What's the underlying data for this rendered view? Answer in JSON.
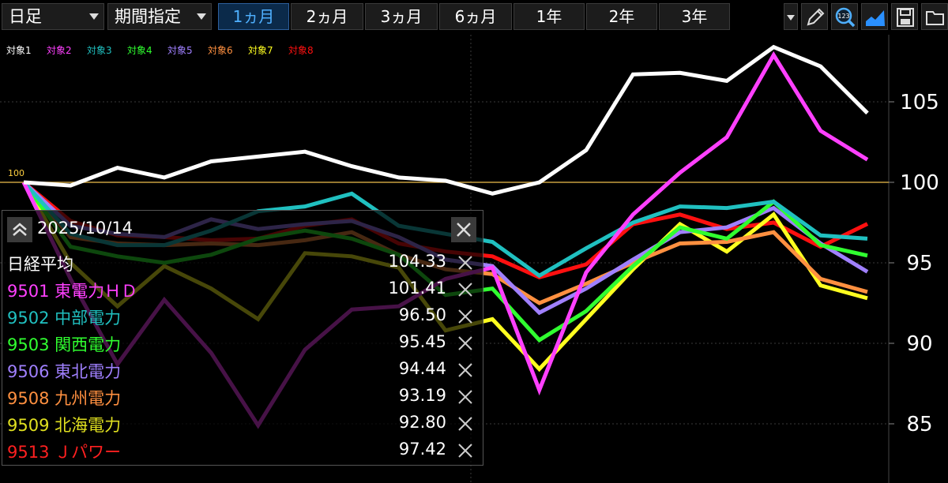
{
  "toolbar": {
    "interval": "日足",
    "range_mode": "期間指定",
    "periods": [
      "1ヵ月",
      "2ヵ月",
      "3ヵ月",
      "6ヵ月",
      "1年",
      "2年",
      "3年"
    ],
    "active_period": 0,
    "icons": [
      "pencil-icon",
      "zoom-123-icon",
      "area-chart-icon",
      "save-icon",
      "folder-icon"
    ]
  },
  "chart_data": {
    "type": "line",
    "base_label": "100",
    "ylim": [
      82,
      110
    ],
    "yticks": [
      "85",
      "90",
      "95",
      "100",
      "105"
    ],
    "legend": [
      "対象1",
      "対象2",
      "対象3",
      "対象4",
      "対象5",
      "対象6",
      "対象7",
      "対象8"
    ],
    "grid": true,
    "series": [
      {
        "name": "日経平均",
        "color": "#ffffff",
        "values": [
          100,
          99.8,
          100.9,
          100.3,
          101.3,
          101.6,
          101.9,
          101.0,
          100.3,
          100.1,
          99.3,
          100.0,
          102.0,
          106.7,
          106.8,
          106.3,
          108.4,
          107.2,
          104.3
        ]
      },
      {
        "name": "9501 東電力ＨＤ",
        "color": "#ff40ff",
        "values": [
          100,
          94.0,
          88.7,
          92.7,
          89.4,
          84.9,
          89.6,
          92.1,
          92.3,
          94.0,
          94.7,
          87.1,
          94.4,
          98.0,
          100.6,
          102.8,
          107.9,
          103.2,
          101.41
        ]
      },
      {
        "name": "9502 中部電力",
        "color": "#20c0c0",
        "values": [
          100,
          96.8,
          96.1,
          96.1,
          97.0,
          98.2,
          98.5,
          99.3,
          97.3,
          96.8,
          96.3,
          94.2,
          95.9,
          97.5,
          98.5,
          98.4,
          98.8,
          96.7,
          96.5
        ]
      },
      {
        "name": "9503 関西電力",
        "color": "#30ff30",
        "values": [
          100,
          96.0,
          95.4,
          95.0,
          95.5,
          96.5,
          97.0,
          96.5,
          95.5,
          93.0,
          93.4,
          90.2,
          92.0,
          94.8,
          97.2,
          96.5,
          98.8,
          96.1,
          95.45
        ]
      },
      {
        "name": "9506 東北電力",
        "color": "#a080ff",
        "values": [
          100,
          97.3,
          96.8,
          96.6,
          97.7,
          97.1,
          97.4,
          97.6,
          96.6,
          95.2,
          94.8,
          91.9,
          93.4,
          95.2,
          96.9,
          97.2,
          98.4,
          96.2,
          94.44
        ]
      },
      {
        "name": "9508 九州電力",
        "color": "#ff9040",
        "values": [
          100,
          96.6,
          96.2,
          96.1,
          96.2,
          96.1,
          96.4,
          96.9,
          95.5,
          94.6,
          94.3,
          92.5,
          93.7,
          95.0,
          96.2,
          96.3,
          96.9,
          94.0,
          93.19
        ]
      },
      {
        "name": "9509 北海電力",
        "color": "#ffff20",
        "values": [
          100,
          95.0,
          92.3,
          94.8,
          93.4,
          91.5,
          95.6,
          95.4,
          94.7,
          90.8,
          91.5,
          88.4,
          91.5,
          94.6,
          97.4,
          95.7,
          98.0,
          93.6,
          92.8
        ]
      },
      {
        "name": "9513 Ｊパワー",
        "color": "#ff1010",
        "values": [
          100,
          97.6,
          96.7,
          96.6,
          96.4,
          96.5,
          97.3,
          97.7,
          96.2,
          95.7,
          95.4,
          94.1,
          94.9,
          97.4,
          98.0,
          97.1,
          97.5,
          96.0,
          97.42
        ]
      }
    ]
  },
  "panel": {
    "date": "2025/10/14",
    "rows": [
      {
        "name": "日経平均",
        "value": "104.33",
        "color": "#ffffff"
      },
      {
        "name": "9501 東電力ＨＤ",
        "value": "101.41",
        "color": "#ff40ff"
      },
      {
        "name": "9502 中部電力",
        "value": "96.50",
        "color": "#20c0c0"
      },
      {
        "name": "9503 関西電力",
        "value": "95.45",
        "color": "#30ff30"
      },
      {
        "name": "9506 東北電力",
        "value": "94.44",
        "color": "#a080ff"
      },
      {
        "name": "9508 九州電力",
        "value": "93.19",
        "color": "#ff9040"
      },
      {
        "name": "9509 北海電力",
        "value": "92.80",
        "color": "#e0e020"
      },
      {
        "name": "9513 Ｊパワー",
        "value": "97.42",
        "color": "#ff2020"
      }
    ]
  }
}
